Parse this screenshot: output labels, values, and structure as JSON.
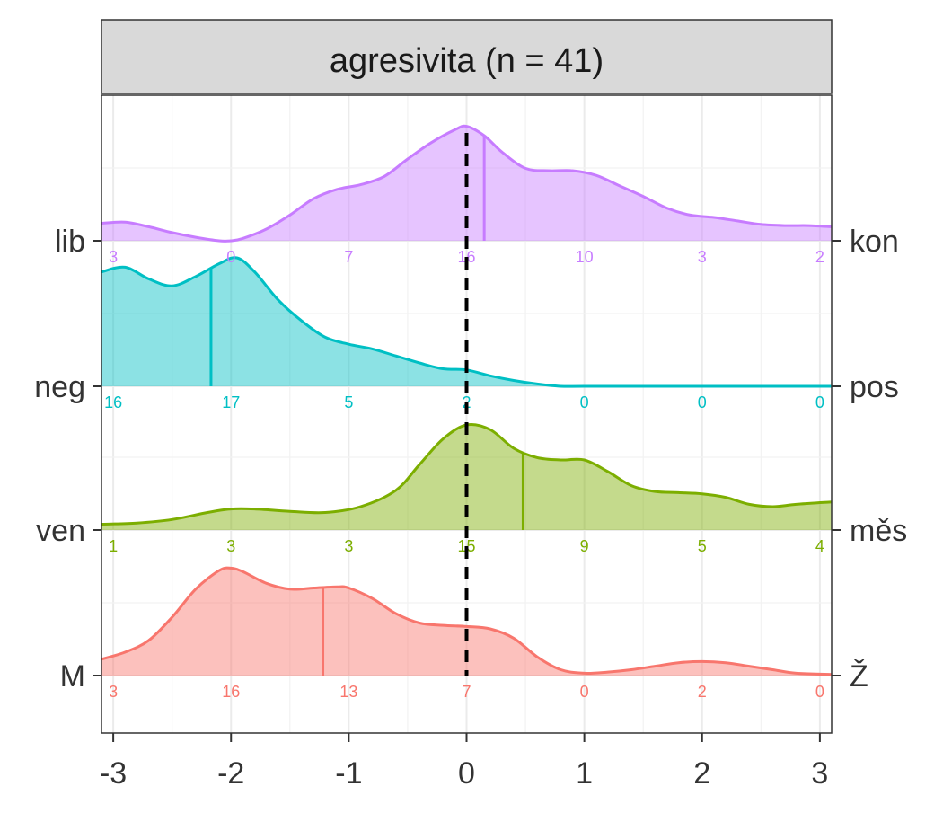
{
  "chart_data": {
    "type": "ridgeline",
    "title": "agresivita (n = 41)",
    "xlabel": "",
    "ylabel": "",
    "xlim": [
      -3.1,
      3.1
    ],
    "x_ticks": [
      -3,
      -2,
      -1,
      0,
      1,
      2,
      3
    ],
    "x_tick_labels": [
      "-3",
      "-2",
      "-1",
      "0",
      "1",
      "2",
      "3"
    ],
    "reference_line_x": 0,
    "count_positions": [
      -3,
      -2,
      -1,
      0,
      1,
      2,
      3
    ],
    "grid": true,
    "legend": "none",
    "series": [
      {
        "left_label": "M",
        "right_label": "Ž",
        "color": "#F8766D",
        "counts": [
          "3",
          "16",
          "13",
          "7",
          "0",
          "2",
          "0"
        ],
        "mean": -1.22,
        "density_x": [
          -3.1,
          -2.9,
          -2.7,
          -2.5,
          -2.3,
          -2.1,
          -2.0,
          -1.9,
          -1.7,
          -1.5,
          -1.3,
          -1.1,
          -1.0,
          -0.8,
          -0.6,
          -0.4,
          -0.2,
          0.0,
          0.2,
          0.4,
          0.6,
          0.8,
          1.0,
          1.2,
          1.4,
          1.6,
          1.8,
          2.0,
          2.2,
          2.4,
          2.6,
          2.8,
          3.1
        ],
        "density_y": [
          0.14,
          0.2,
          0.3,
          0.5,
          0.74,
          0.9,
          0.92,
          0.89,
          0.79,
          0.74,
          0.75,
          0.76,
          0.75,
          0.66,
          0.53,
          0.45,
          0.43,
          0.42,
          0.4,
          0.32,
          0.16,
          0.05,
          0.02,
          0.03,
          0.05,
          0.08,
          0.11,
          0.12,
          0.11,
          0.08,
          0.05,
          0.02,
          0.01
        ]
      },
      {
        "left_label": "ven",
        "right_label": "měs",
        "color": "#7CAE00",
        "counts": [
          "1",
          "3",
          "3",
          "15",
          "9",
          "5",
          "4"
        ],
        "mean": 0.48,
        "density_x": [
          -3.1,
          -2.8,
          -2.5,
          -2.2,
          -2.0,
          -1.8,
          -1.5,
          -1.2,
          -0.9,
          -0.6,
          -0.4,
          -0.2,
          0.0,
          0.2,
          0.4,
          0.6,
          0.8,
          1.0,
          1.2,
          1.4,
          1.6,
          1.8,
          2.0,
          2.2,
          2.4,
          2.6,
          2.8,
          3.1
        ],
        "density_y": [
          0.05,
          0.06,
          0.09,
          0.15,
          0.18,
          0.18,
          0.16,
          0.15,
          0.2,
          0.34,
          0.56,
          0.78,
          0.9,
          0.86,
          0.7,
          0.62,
          0.6,
          0.6,
          0.5,
          0.38,
          0.33,
          0.32,
          0.31,
          0.28,
          0.22,
          0.2,
          0.22,
          0.24
        ]
      },
      {
        "left_label": "neg",
        "right_label": "pos",
        "color": "#00BFC4",
        "counts": [
          "16",
          "17",
          "5",
          "2",
          "0",
          "0",
          "0"
        ],
        "mean": -2.17,
        "density_x": [
          -3.1,
          -2.9,
          -2.7,
          -2.5,
          -2.3,
          -2.1,
          -1.95,
          -1.8,
          -1.6,
          -1.4,
          -1.2,
          -1.0,
          -0.8,
          -0.6,
          -0.4,
          -0.2,
          0.0,
          0.2,
          0.4,
          0.6,
          0.8,
          1.0,
          1.5,
          2.0,
          2.5,
          3.1
        ],
        "density_y": [
          0.98,
          1.02,
          0.92,
          0.86,
          0.94,
          1.05,
          1.1,
          0.98,
          0.74,
          0.56,
          0.42,
          0.36,
          0.32,
          0.26,
          0.2,
          0.15,
          0.14,
          0.09,
          0.05,
          0.02,
          0.0,
          0.0,
          0.0,
          0.0,
          0.0,
          0.0
        ]
      },
      {
        "left_label": "lib",
        "right_label": "kon",
        "color": "#C77CFF",
        "counts": [
          "3",
          "0",
          "7",
          "16",
          "10",
          "3",
          "2"
        ],
        "mean": 0.15,
        "density_x": [
          -3.1,
          -2.9,
          -2.7,
          -2.5,
          -2.3,
          -2.1,
          -2.0,
          -1.9,
          -1.7,
          -1.5,
          -1.3,
          -1.1,
          -0.9,
          -0.7,
          -0.5,
          -0.3,
          -0.1,
          0.0,
          0.15,
          0.3,
          0.5,
          0.7,
          0.9,
          1.1,
          1.3,
          1.5,
          1.7,
          1.9,
          2.1,
          2.3,
          2.5,
          2.7,
          2.9,
          3.1
        ],
        "density_y": [
          0.15,
          0.16,
          0.12,
          0.07,
          0.03,
          0.0,
          0.0,
          0.02,
          0.1,
          0.22,
          0.36,
          0.44,
          0.48,
          0.55,
          0.7,
          0.84,
          0.95,
          0.98,
          0.9,
          0.76,
          0.62,
          0.6,
          0.6,
          0.56,
          0.47,
          0.38,
          0.28,
          0.22,
          0.2,
          0.17,
          0.14,
          0.13,
          0.13,
          0.12
        ]
      }
    ]
  }
}
